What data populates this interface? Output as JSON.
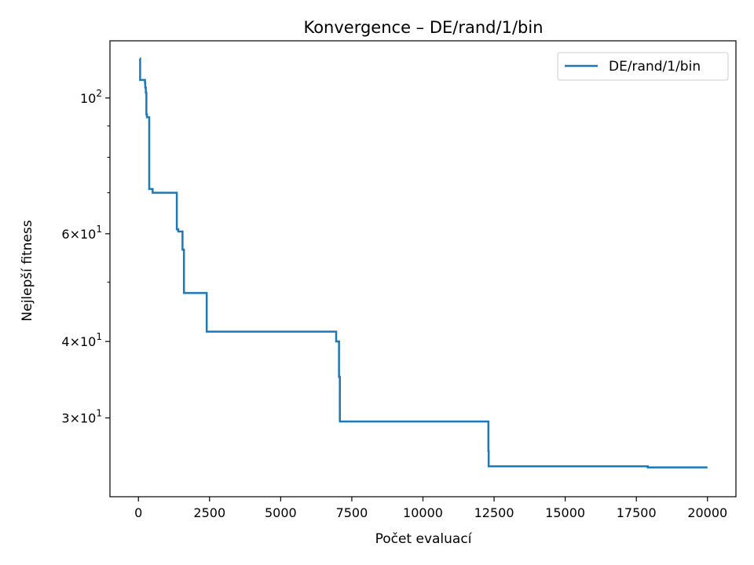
{
  "chart_data": {
    "type": "line",
    "title": "Konvergence – DE/rand/1/bin",
    "xlabel": "Počet evaluací",
    "ylabel": "Nejlepší fitness",
    "xlim": [
      -1000,
      21000
    ],
    "ylim": [
      22.3,
      124.0
    ],
    "yscale": "log",
    "x_ticks": [
      0,
      2500,
      5000,
      7500,
      10000,
      12500,
      15000,
      17500,
      20000
    ],
    "x_tick_labels": [
      "0",
      "2500",
      "5000",
      "7500",
      "10000",
      "12500",
      "15000",
      "17500",
      "20000"
    ],
    "y_major_ticks": [
      30,
      40,
      60,
      100
    ],
    "y_major_tick_labels": [
      {
        "base": "3",
        "mult": "×",
        "pow10": "10",
        "exp": "1"
      },
      {
        "base": "4",
        "mult": "×",
        "pow10": "10",
        "exp": "1"
      },
      {
        "base": "6",
        "mult": "×",
        "pow10": "10",
        "exp": "1"
      },
      {
        "base": "",
        "mult": "",
        "pow10": "10",
        "exp": "2"
      }
    ],
    "y_minor_ticks": [
      50,
      70,
      80,
      90
    ],
    "grid": false,
    "legend_position": "upper right",
    "series": [
      {
        "name": "DE/rand/1/bin",
        "color": "#1f77b4",
        "step": true,
        "x": [
          50,
          60,
          200,
          230,
          240,
          260,
          280,
          300,
          380,
          400,
          500,
          1350,
          1400,
          1550,
          1600,
          1650,
          2400,
          6950,
          7000,
          7050,
          7080,
          12300,
          12310,
          12340,
          17900,
          17950,
          20000
        ],
        "y": [
          116,
          107,
          107,
          106,
          104,
          102,
          94,
          93,
          71,
          71,
          70,
          61,
          60.5,
          56.5,
          48,
          48,
          41.5,
          40,
          40,
          35,
          29.6,
          26.5,
          25.0,
          25.0,
          24.9,
          24.9,
          24.9
        ]
      }
    ]
  }
}
